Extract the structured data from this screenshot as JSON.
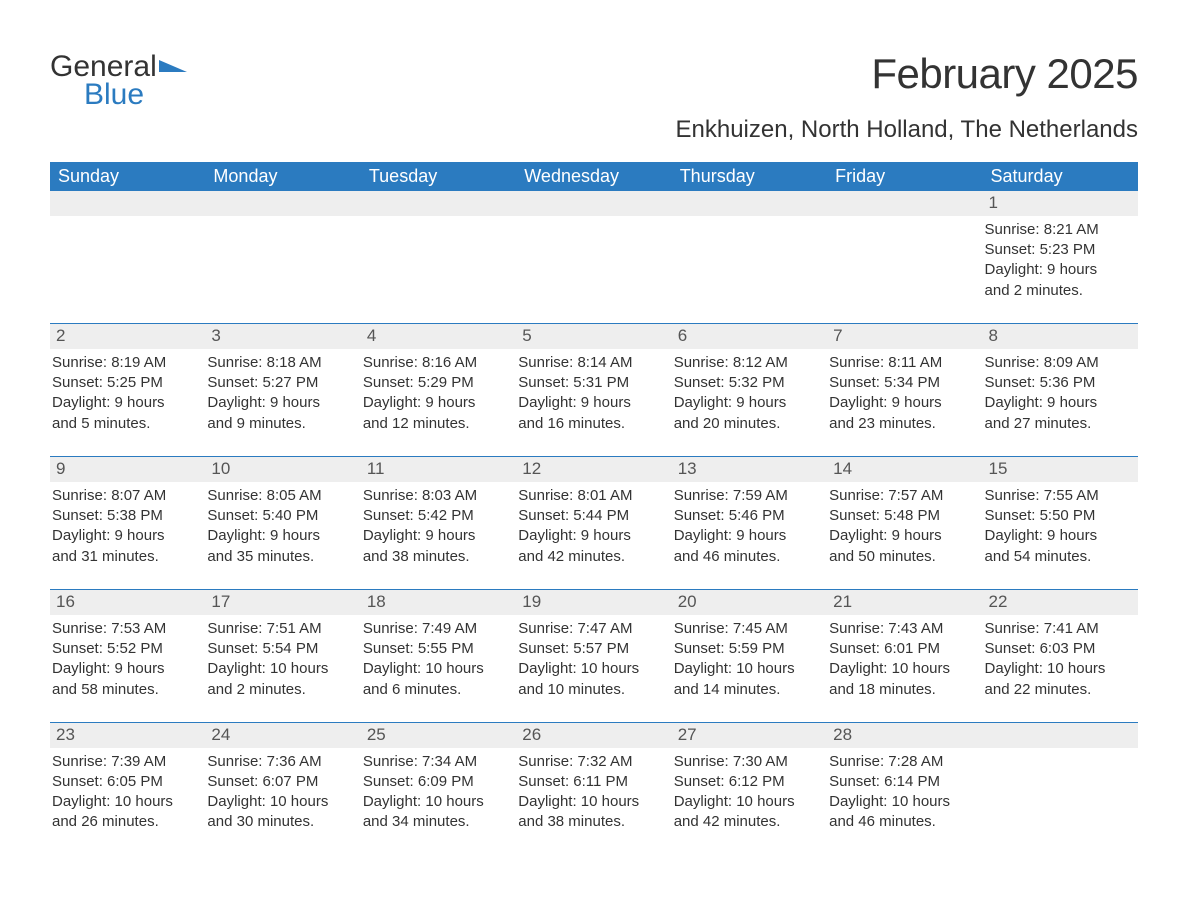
{
  "logo": {
    "text1": "General",
    "text2": "Blue",
    "icon_color": "#2b7bc0"
  },
  "title": "February 2025",
  "location": "Enkhuizen, North Holland, The Netherlands",
  "colors": {
    "header_bg": "#2b7bc0",
    "header_text": "#ffffff",
    "daynum_bg": "#eeeeee",
    "border": "#2b7bc0",
    "text": "#333333",
    "page_bg": "#ffffff"
  },
  "day_headers": [
    "Sunday",
    "Monday",
    "Tuesday",
    "Wednesday",
    "Thursday",
    "Friday",
    "Saturday"
  ],
  "weeks": [
    [
      {
        "n": "",
        "sunrise": "",
        "sunset": "",
        "daylight1": "",
        "daylight2": ""
      },
      {
        "n": "",
        "sunrise": "",
        "sunset": "",
        "daylight1": "",
        "daylight2": ""
      },
      {
        "n": "",
        "sunrise": "",
        "sunset": "",
        "daylight1": "",
        "daylight2": ""
      },
      {
        "n": "",
        "sunrise": "",
        "sunset": "",
        "daylight1": "",
        "daylight2": ""
      },
      {
        "n": "",
        "sunrise": "",
        "sunset": "",
        "daylight1": "",
        "daylight2": ""
      },
      {
        "n": "",
        "sunrise": "",
        "sunset": "",
        "daylight1": "",
        "daylight2": ""
      },
      {
        "n": "1",
        "sunrise": "Sunrise: 8:21 AM",
        "sunset": "Sunset: 5:23 PM",
        "daylight1": "Daylight: 9 hours",
        "daylight2": "and 2 minutes."
      }
    ],
    [
      {
        "n": "2",
        "sunrise": "Sunrise: 8:19 AM",
        "sunset": "Sunset: 5:25 PM",
        "daylight1": "Daylight: 9 hours",
        "daylight2": "and 5 minutes."
      },
      {
        "n": "3",
        "sunrise": "Sunrise: 8:18 AM",
        "sunset": "Sunset: 5:27 PM",
        "daylight1": "Daylight: 9 hours",
        "daylight2": "and 9 minutes."
      },
      {
        "n": "4",
        "sunrise": "Sunrise: 8:16 AM",
        "sunset": "Sunset: 5:29 PM",
        "daylight1": "Daylight: 9 hours",
        "daylight2": "and 12 minutes."
      },
      {
        "n": "5",
        "sunrise": "Sunrise: 8:14 AM",
        "sunset": "Sunset: 5:31 PM",
        "daylight1": "Daylight: 9 hours",
        "daylight2": "and 16 minutes."
      },
      {
        "n": "6",
        "sunrise": "Sunrise: 8:12 AM",
        "sunset": "Sunset: 5:32 PM",
        "daylight1": "Daylight: 9 hours",
        "daylight2": "and 20 minutes."
      },
      {
        "n": "7",
        "sunrise": "Sunrise: 8:11 AM",
        "sunset": "Sunset: 5:34 PM",
        "daylight1": "Daylight: 9 hours",
        "daylight2": "and 23 minutes."
      },
      {
        "n": "8",
        "sunrise": "Sunrise: 8:09 AM",
        "sunset": "Sunset: 5:36 PM",
        "daylight1": "Daylight: 9 hours",
        "daylight2": "and 27 minutes."
      }
    ],
    [
      {
        "n": "9",
        "sunrise": "Sunrise: 8:07 AM",
        "sunset": "Sunset: 5:38 PM",
        "daylight1": "Daylight: 9 hours",
        "daylight2": "and 31 minutes."
      },
      {
        "n": "10",
        "sunrise": "Sunrise: 8:05 AM",
        "sunset": "Sunset: 5:40 PM",
        "daylight1": "Daylight: 9 hours",
        "daylight2": "and 35 minutes."
      },
      {
        "n": "11",
        "sunrise": "Sunrise: 8:03 AM",
        "sunset": "Sunset: 5:42 PM",
        "daylight1": "Daylight: 9 hours",
        "daylight2": "and 38 minutes."
      },
      {
        "n": "12",
        "sunrise": "Sunrise: 8:01 AM",
        "sunset": "Sunset: 5:44 PM",
        "daylight1": "Daylight: 9 hours",
        "daylight2": "and 42 minutes."
      },
      {
        "n": "13",
        "sunrise": "Sunrise: 7:59 AM",
        "sunset": "Sunset: 5:46 PM",
        "daylight1": "Daylight: 9 hours",
        "daylight2": "and 46 minutes."
      },
      {
        "n": "14",
        "sunrise": "Sunrise: 7:57 AM",
        "sunset": "Sunset: 5:48 PM",
        "daylight1": "Daylight: 9 hours",
        "daylight2": "and 50 minutes."
      },
      {
        "n": "15",
        "sunrise": "Sunrise: 7:55 AM",
        "sunset": "Sunset: 5:50 PM",
        "daylight1": "Daylight: 9 hours",
        "daylight2": "and 54 minutes."
      }
    ],
    [
      {
        "n": "16",
        "sunrise": "Sunrise: 7:53 AM",
        "sunset": "Sunset: 5:52 PM",
        "daylight1": "Daylight: 9 hours",
        "daylight2": "and 58 minutes."
      },
      {
        "n": "17",
        "sunrise": "Sunrise: 7:51 AM",
        "sunset": "Sunset: 5:54 PM",
        "daylight1": "Daylight: 10 hours",
        "daylight2": "and 2 minutes."
      },
      {
        "n": "18",
        "sunrise": "Sunrise: 7:49 AM",
        "sunset": "Sunset: 5:55 PM",
        "daylight1": "Daylight: 10 hours",
        "daylight2": "and 6 minutes."
      },
      {
        "n": "19",
        "sunrise": "Sunrise: 7:47 AM",
        "sunset": "Sunset: 5:57 PM",
        "daylight1": "Daylight: 10 hours",
        "daylight2": "and 10 minutes."
      },
      {
        "n": "20",
        "sunrise": "Sunrise: 7:45 AM",
        "sunset": "Sunset: 5:59 PM",
        "daylight1": "Daylight: 10 hours",
        "daylight2": "and 14 minutes."
      },
      {
        "n": "21",
        "sunrise": "Sunrise: 7:43 AM",
        "sunset": "Sunset: 6:01 PM",
        "daylight1": "Daylight: 10 hours",
        "daylight2": "and 18 minutes."
      },
      {
        "n": "22",
        "sunrise": "Sunrise: 7:41 AM",
        "sunset": "Sunset: 6:03 PM",
        "daylight1": "Daylight: 10 hours",
        "daylight2": "and 22 minutes."
      }
    ],
    [
      {
        "n": "23",
        "sunrise": "Sunrise: 7:39 AM",
        "sunset": "Sunset: 6:05 PM",
        "daylight1": "Daylight: 10 hours",
        "daylight2": "and 26 minutes."
      },
      {
        "n": "24",
        "sunrise": "Sunrise: 7:36 AM",
        "sunset": "Sunset: 6:07 PM",
        "daylight1": "Daylight: 10 hours",
        "daylight2": "and 30 minutes."
      },
      {
        "n": "25",
        "sunrise": "Sunrise: 7:34 AM",
        "sunset": "Sunset: 6:09 PM",
        "daylight1": "Daylight: 10 hours",
        "daylight2": "and 34 minutes."
      },
      {
        "n": "26",
        "sunrise": "Sunrise: 7:32 AM",
        "sunset": "Sunset: 6:11 PM",
        "daylight1": "Daylight: 10 hours",
        "daylight2": "and 38 minutes."
      },
      {
        "n": "27",
        "sunrise": "Sunrise: 7:30 AM",
        "sunset": "Sunset: 6:12 PM",
        "daylight1": "Daylight: 10 hours",
        "daylight2": "and 42 minutes."
      },
      {
        "n": "28",
        "sunrise": "Sunrise: 7:28 AM",
        "sunset": "Sunset: 6:14 PM",
        "daylight1": "Daylight: 10 hours",
        "daylight2": "and 46 minutes."
      },
      {
        "n": "",
        "sunrise": "",
        "sunset": "",
        "daylight1": "",
        "daylight2": ""
      }
    ]
  ]
}
